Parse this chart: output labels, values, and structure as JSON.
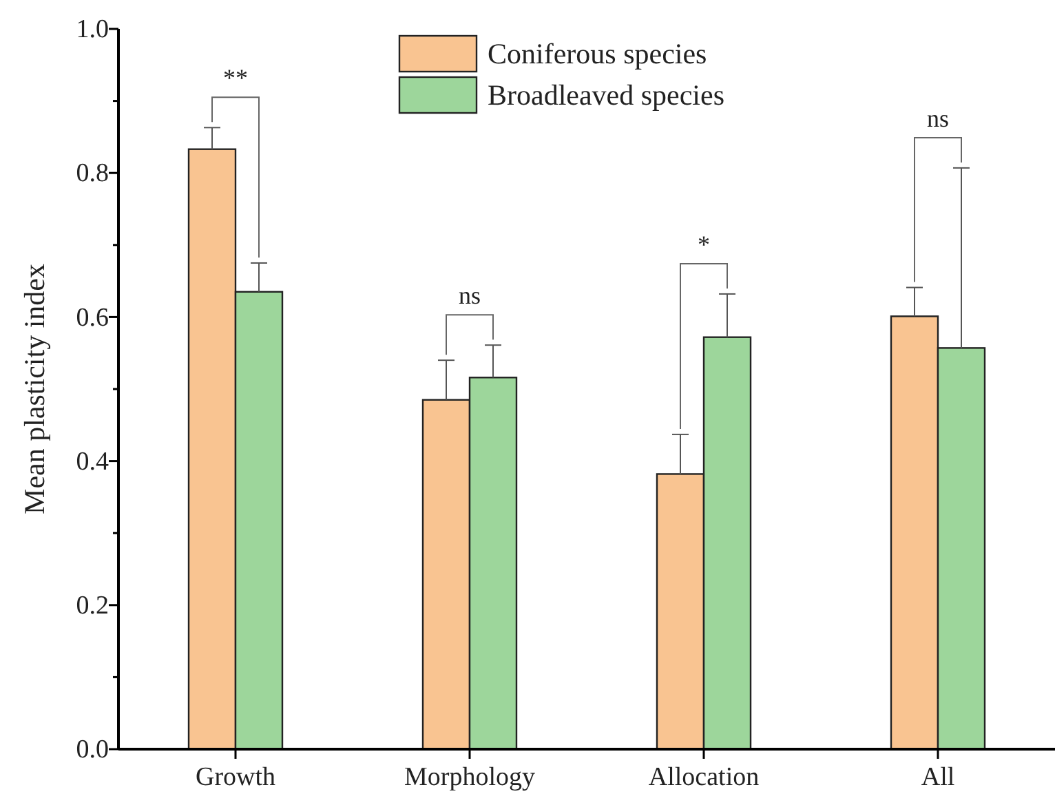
{
  "chart_data": {
    "type": "bar",
    "ylabel": "Mean plasticity index",
    "categories": [
      "Growth",
      "Morphology",
      "Allocation",
      "All"
    ],
    "series": [
      {
        "name": "Coniferous species",
        "color": "#f9c491",
        "values": [
          0.833,
          0.485,
          0.382,
          0.601
        ],
        "errors": [
          0.03,
          0.055,
          0.055,
          0.04
        ]
      },
      {
        "name": "Broadleaved species",
        "color": "#9dd69b",
        "values": [
          0.635,
          0.516,
          0.572,
          0.557
        ],
        "errors": [
          0.04,
          0.045,
          0.06,
          0.25
        ]
      }
    ],
    "ylim": [
      0,
      1
    ],
    "yticks": [
      {
        "value": 0,
        "label": "0.0"
      },
      {
        "value": 0.1,
        "label": null
      },
      {
        "value": 0.2,
        "label": "0.2"
      },
      {
        "value": 0.3,
        "label": null
      },
      {
        "value": 0.4,
        "label": "0.4"
      },
      {
        "value": 0.5,
        "label": null
      },
      {
        "value": 0.6,
        "label": "0.6"
      },
      {
        "value": 0.7,
        "label": null
      },
      {
        "value": 0.8,
        "label": "0.8"
      },
      {
        "value": 0.9,
        "label": null
      },
      {
        "value": 1,
        "label": "1.0"
      }
    ],
    "annotations": [
      "**",
      "ns",
      "*",
      "ns"
    ],
    "legend": "top",
    "grid": false
  }
}
